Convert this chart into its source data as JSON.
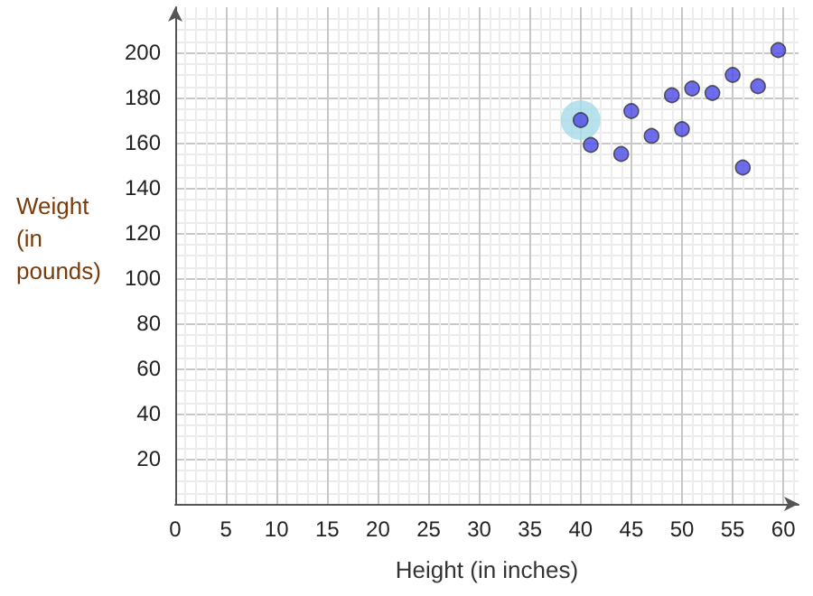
{
  "chart_data": {
    "type": "scatter",
    "xlabel": "Height (in inches)",
    "ylabel": "Weight (in pounds)",
    "series": [
      {
        "color": "#a6dcea",
        "x": [
          40
        ],
        "values": [
          170
        ]
      },
      {
        "color": "#4a4ae8",
        "x": [
          40,
          41,
          44,
          45,
          47,
          49,
          50,
          51,
          53,
          55,
          56,
          57.5,
          59.5
        ],
        "values": [
          170,
          159,
          155,
          174,
          163,
          181,
          166,
          184,
          182,
          190,
          149,
          185,
          201
        ]
      }
    ],
    "xlim": [
      0,
      61.5
    ],
    "ylim": [
      0,
      220
    ],
    "xticks": [
      0,
      5,
      10,
      15,
      20,
      25,
      30,
      35,
      40,
      45,
      50,
      55,
      60
    ],
    "yticks": [
      {
        "value": 0,
        "label": null
      },
      20,
      40,
      60,
      80,
      100,
      120,
      140,
      160,
      180,
      200
    ],
    "grid": true,
    "marker": "circle"
  }
}
